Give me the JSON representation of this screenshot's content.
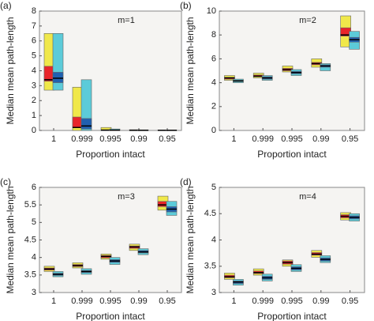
{
  "chart_data": [
    {
      "type": "box",
      "panel": "(a)",
      "annotation": "m=1",
      "ylabel": "Median mean path-length",
      "xlabel": "Proportion intact",
      "categories": [
        "1",
        "0.999",
        "0.995",
        "0.99",
        "0.95"
      ],
      "ylim": [
        0,
        8
      ],
      "yticks": [
        0,
        1,
        2,
        3,
        4,
        5,
        6,
        7,
        8
      ],
      "series": [
        {
          "color": "#f0e84a",
          "inner_color": "#e8252a",
          "low": [
            2.7,
            0,
            0,
            0,
            0
          ],
          "high": [
            6.5,
            2.9,
            0.2,
            0.05,
            0.03
          ],
          "inner_low": [
            3.3,
            0.2,
            0,
            0,
            0
          ],
          "inner_high": [
            4.3,
            0.9,
            0.05,
            0.02,
            0.01
          ],
          "median": [
            3.4,
            0.2,
            0.02,
            0.01,
            0.01
          ]
        },
        {
          "color": "#5ccbd9",
          "inner_color": "#2060b0",
          "low": [
            2.7,
            0,
            0,
            0,
            0
          ],
          "high": [
            6.5,
            3.4,
            0.1,
            0.04,
            0.03
          ],
          "inner_low": [
            3.2,
            0.1,
            0,
            0,
            0
          ],
          "inner_high": [
            3.9,
            0.8,
            0.04,
            0.02,
            0.01
          ],
          "median": [
            3.5,
            0.3,
            0.02,
            0.01,
            0.01
          ]
        }
      ]
    },
    {
      "type": "box",
      "panel": "(b)",
      "annotation": "m=2",
      "ylabel": "Median mean path-length",
      "xlabel": "Proportion intact",
      "categories": [
        "1",
        "0.999",
        "0.995",
        "0.99",
        "0.95"
      ],
      "ylim": [
        0,
        10
      ],
      "yticks": [
        0,
        2,
        4,
        6,
        8,
        10
      ],
      "series": [
        {
          "color": "#f0e84a",
          "inner_color": "#e8252a",
          "low": [
            4.2,
            4.4,
            4.9,
            5.3,
            7.0
          ],
          "high": [
            4.6,
            4.8,
            5.4,
            6.0,
            9.6
          ],
          "inner_low": [
            4.3,
            4.5,
            5.0,
            5.5,
            7.9
          ],
          "inner_high": [
            4.45,
            4.65,
            5.2,
            5.7,
            8.6
          ],
          "median": [
            4.4,
            4.55,
            5.1,
            5.6,
            8.0
          ]
        },
        {
          "color": "#5ccbd9",
          "inner_color": "#2060b0",
          "low": [
            4.0,
            4.2,
            4.6,
            5.0,
            6.8
          ],
          "high": [
            4.3,
            4.6,
            5.1,
            5.6,
            8.3
          ],
          "inner_low": [
            4.1,
            4.3,
            4.75,
            5.3,
            7.4
          ],
          "inner_high": [
            4.2,
            4.5,
            4.95,
            5.5,
            7.8
          ],
          "median": [
            4.15,
            4.4,
            4.85,
            5.4,
            7.6
          ]
        }
      ]
    },
    {
      "type": "box",
      "panel": "(c)",
      "annotation": "m=3",
      "ylabel": "Median mean path-length",
      "xlabel": "Proportion intact",
      "categories": [
        "1",
        "0.999",
        "0.995",
        "0.99",
        "0.95"
      ],
      "ylim": [
        3,
        6
      ],
      "yticks": [
        3,
        3.5,
        4,
        4.5,
        5,
        5.5,
        6
      ],
      "series": [
        {
          "color": "#f0e84a",
          "inner_color": "#e8252a",
          "low": [
            3.6,
            3.7,
            3.95,
            4.2,
            5.35
          ],
          "high": [
            3.75,
            3.85,
            4.1,
            4.38,
            5.75
          ],
          "inner_low": [
            3.64,
            3.74,
            3.99,
            4.26,
            5.45
          ],
          "inner_high": [
            3.7,
            3.8,
            4.06,
            4.33,
            5.6
          ],
          "median": [
            3.67,
            3.77,
            4.03,
            4.3,
            5.5
          ]
        },
        {
          "color": "#5ccbd9",
          "inner_color": "#2060b0",
          "low": [
            3.45,
            3.52,
            3.8,
            4.08,
            5.2
          ],
          "high": [
            3.6,
            3.68,
            4.0,
            4.25,
            5.6
          ],
          "inner_low": [
            3.49,
            3.57,
            3.86,
            4.13,
            5.3
          ],
          "inner_high": [
            3.55,
            3.63,
            3.94,
            4.2,
            5.45
          ],
          "median": [
            3.52,
            3.6,
            3.9,
            4.16,
            5.38
          ]
        }
      ]
    },
    {
      "type": "box",
      "panel": "(d)",
      "annotation": "m=4",
      "ylabel": "Median mean path-length",
      "xlabel": "Proportion intact",
      "categories": [
        "1",
        "0.999",
        "0.995",
        "0.99",
        "0.95"
      ],
      "ylim": [
        3,
        5
      ],
      "yticks": [
        3,
        3.5,
        4,
        4.5,
        5
      ],
      "series": [
        {
          "color": "#f0e84a",
          "inner_color": "#e8252a",
          "low": [
            3.25,
            3.33,
            3.5,
            3.67,
            4.38
          ],
          "high": [
            3.37,
            3.45,
            3.62,
            3.8,
            4.52
          ],
          "inner_low": [
            3.28,
            3.36,
            3.54,
            3.71,
            4.42
          ],
          "inner_high": [
            3.33,
            3.41,
            3.6,
            3.76,
            4.48
          ],
          "median": [
            3.3,
            3.38,
            3.57,
            3.73,
            4.45
          ]
        },
        {
          "color": "#5ccbd9",
          "inner_color": "#2060b0",
          "low": [
            3.14,
            3.22,
            3.4,
            3.57,
            4.36
          ],
          "high": [
            3.25,
            3.35,
            3.53,
            3.7,
            4.5
          ],
          "inner_low": [
            3.17,
            3.25,
            3.43,
            3.6,
            4.4
          ],
          "inner_high": [
            3.22,
            3.31,
            3.49,
            3.66,
            4.46
          ],
          "median": [
            3.2,
            3.28,
            3.46,
            3.63,
            4.43
          ]
        }
      ]
    }
  ]
}
